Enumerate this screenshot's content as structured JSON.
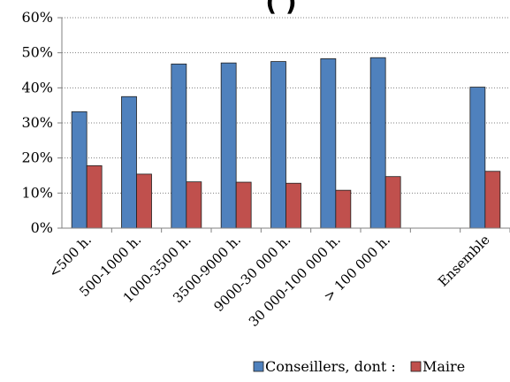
{
  "chart_data": {
    "type": "bar",
    "title": "(                              )",
    "categories": [
      "<500 h.",
      "500-1000 h.",
      "1000-3500 h.",
      "3500-9000 h.",
      "9000-30 000 h.",
      "30 000-100 000 h.",
      "> 100 000 h.",
      "",
      "Ensemble"
    ],
    "series": [
      {
        "name": "Conseillers, dont :",
        "color": "#4f81bd",
        "values": [
          33.2,
          37.5,
          46.8,
          47.1,
          47.5,
          48.3,
          48.6,
          null,
          40.2
        ]
      },
      {
        "name": "Maire",
        "color": "#c0504d",
        "values": [
          17.8,
          15.4,
          13.2,
          13.1,
          12.8,
          10.8,
          14.7,
          null,
          16.2
        ]
      }
    ],
    "ylim": [
      0,
      60
    ],
    "yticks": [
      "0%",
      "10%",
      "20%",
      "30%",
      "40%",
      "50%",
      "60%"
    ],
    "grid": true,
    "legend": "bottom-right"
  }
}
